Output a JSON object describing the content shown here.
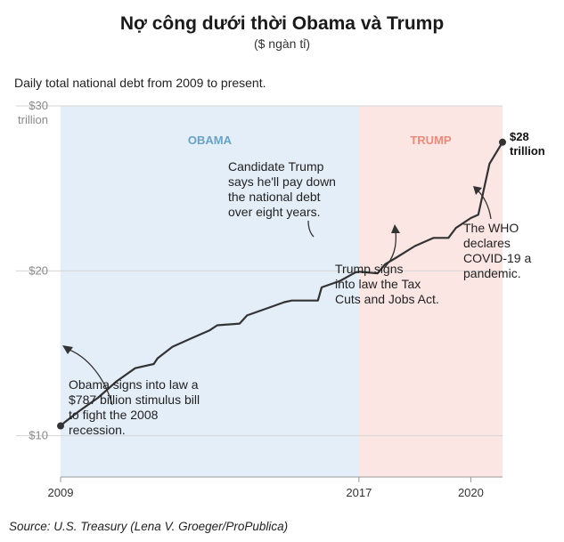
{
  "chart_data": {
    "type": "line",
    "title": "Nợ công dưới thời Obama và Trump",
    "subtitle": "($ ngàn tỉ)",
    "description": "Daily total national debt from 2009 to present.",
    "xlabel": "",
    "ylabel": "",
    "xlim": [
      2009,
      2020.85
    ],
    "ylim": [
      7.5,
      30
    ],
    "y_ticks": [
      {
        "value": 30,
        "label": "$30",
        "sublabel": "trillion"
      },
      {
        "value": 20,
        "label": "$20"
      },
      {
        "value": 10,
        "label": "$10"
      }
    ],
    "x_ticks": [
      {
        "value": 2009,
        "label": "2009"
      },
      {
        "value": 2017,
        "label": "2017"
      },
      {
        "value": 2020,
        "label": "2020"
      }
    ],
    "periods": [
      {
        "name": "OBAMA",
        "start": 2009,
        "end": 2017,
        "color": "#e4eef8",
        "label_color": "#6aa1c4"
      },
      {
        "name": "TRUMP",
        "start": 2017,
        "end": 2020.85,
        "color": "#fbe6e3",
        "label_color": "#ee8a7b"
      }
    ],
    "series": [
      {
        "name": "Total national debt (trillion $)",
        "color": "#333333",
        "x": [
          2009.0,
          2009.1,
          2009.5,
          2010.0,
          2010.5,
          2011.0,
          2011.5,
          2011.6,
          2012.0,
          2012.5,
          2013.0,
          2013.2,
          2013.8,
          2014.0,
          2014.5,
          2015.0,
          2015.2,
          2015.9,
          2016.0,
          2016.5,
          2016.9,
          2017.0,
          2017.5,
          2017.7,
          2018.0,
          2018.5,
          2019.0,
          2019.4,
          2019.6,
          2020.0,
          2020.2,
          2020.5,
          2020.85
        ],
        "values": [
          10.6,
          10.8,
          11.5,
          12.3,
          13.3,
          14.1,
          14.35,
          14.7,
          15.4,
          15.9,
          16.4,
          16.7,
          16.8,
          17.3,
          17.7,
          18.1,
          18.2,
          18.2,
          19.0,
          19.4,
          19.9,
          19.95,
          19.85,
          20.4,
          20.8,
          21.5,
          22.0,
          22.0,
          22.6,
          23.2,
          23.4,
          26.5,
          27.8
        ]
      }
    ],
    "end_label": [
      "$28",
      "trillion"
    ],
    "annotations": [
      [
        "Obama signs into law a",
        "$787 billion stimulus bill",
        "to fight the 2008",
        "recession."
      ],
      [
        "Candidate Trump",
        "says he'll pay down",
        "the national debt",
        "over eight years."
      ],
      [
        "Trump signs",
        "into law the Tax",
        "Cuts and Jobs Act."
      ],
      [
        "The WHO",
        "declares",
        "COVID-19 a",
        "pandemic."
      ]
    ]
  },
  "source": "Source: U.S. Treasury (Lena V. Groeger/ProPublica)"
}
